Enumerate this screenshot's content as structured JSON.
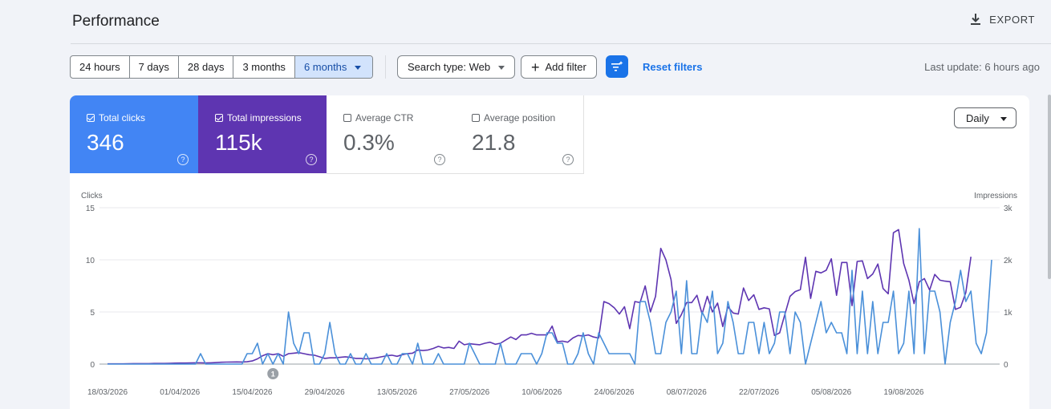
{
  "header": {
    "title": "Performance",
    "export_label": "EXPORT"
  },
  "toolbar": {
    "ranges": [
      {
        "label": "24 hours",
        "selected": false
      },
      {
        "label": "7 days",
        "selected": false
      },
      {
        "label": "28 days",
        "selected": false
      },
      {
        "label": "3 months",
        "selected": false
      },
      {
        "label": "6 months",
        "selected": true
      }
    ],
    "search_type": "Search type: Web",
    "add_filter": "Add filter",
    "reset_filters": "Reset filters",
    "last_update": "Last update: 6 hours ago"
  },
  "metrics": [
    {
      "label": "Total clicks",
      "value": "346",
      "checked": true,
      "color": "#4285f4"
    },
    {
      "label": "Total impressions",
      "value": "115k",
      "checked": true,
      "color": "#5e35b1"
    },
    {
      "label": "Average CTR",
      "value": "0.3%",
      "checked": false
    },
    {
      "label": "Average position",
      "value": "21.8",
      "checked": false
    }
  ],
  "granularity": "Daily",
  "annotation": "1",
  "chart_data": {
    "type": "line",
    "ylabel_left": "Clicks",
    "ylabel_right": "Impressions",
    "y_left_ticks": [
      "0",
      "5",
      "10",
      "15"
    ],
    "y_right_ticks": [
      "0",
      "1k",
      "2k",
      "3k"
    ],
    "ylim_left": [
      0,
      15
    ],
    "ylim_right": [
      0,
      3000
    ],
    "x_ticks": [
      "18/03/2026",
      "01/04/2026",
      "15/04/2026",
      "29/04/2026",
      "13/05/2026",
      "27/05/2026",
      "10/06/2026",
      "24/06/2026",
      "08/07/2026",
      "22/07/2026",
      "05/08/2026",
      "19/08/2026"
    ],
    "x_start": "2026-03-18",
    "series": [
      {
        "name": "Clicks",
        "axis": "left",
        "color": "#4a90d9",
        "values": [
          0,
          0,
          0,
          0,
          0,
          0,
          0,
          0,
          0,
          0,
          0,
          0,
          0,
          0,
          0,
          0,
          0,
          0,
          1,
          0,
          0,
          0,
          0,
          0,
          0,
          0,
          0,
          1,
          1,
          2,
          0,
          1,
          0,
          1,
          0,
          5,
          2,
          1,
          3,
          3,
          0,
          0,
          1,
          4,
          1,
          0,
          0,
          1,
          0,
          0,
          1,
          0,
          0,
          0,
          1,
          0,
          0,
          1,
          1,
          0,
          2,
          0,
          0,
          0,
          1,
          0,
          0,
          0,
          0,
          0,
          2,
          1,
          0,
          0,
          0,
          0,
          2,
          0,
          0,
          0,
          1,
          1,
          1,
          0,
          1,
          3,
          3,
          2,
          2,
          0,
          0,
          1,
          3,
          1,
          0,
          3,
          2,
          1,
          1,
          1,
          1,
          1,
          0,
          6,
          6,
          4,
          1,
          1,
          4,
          5,
          7,
          1,
          8,
          1,
          1,
          5,
          4,
          7,
          1,
          2,
          6,
          4,
          1,
          1,
          4,
          4,
          1,
          4,
          1,
          2,
          5,
          5,
          1,
          5,
          4,
          0,
          2,
          4,
          6,
          3,
          4,
          3,
          3,
          1,
          9,
          1,
          7,
          1,
          6,
          1,
          4,
          4,
          7,
          1,
          2,
          7,
          1,
          13,
          1,
          7,
          7,
          5,
          0,
          4,
          6,
          9,
          6,
          7,
          2,
          1,
          3,
          10
        ]
      },
      {
        "name": "Impressions",
        "axis": "right",
        "color": "#5e35b1",
        "values": [
          5,
          5,
          5,
          5,
          8,
          10,
          10,
          10,
          10,
          12,
          12,
          12,
          15,
          18,
          20,
          20,
          22,
          25,
          25,
          22,
          25,
          30,
          35,
          38,
          40,
          42,
          40,
          45,
          60,
          100,
          160,
          200,
          180,
          200,
          150,
          200,
          210,
          220,
          200,
          180,
          170,
          140,
          110,
          120,
          120,
          130,
          140,
          130,
          110,
          110,
          100,
          110,
          120,
          140,
          160,
          170,
          150,
          180,
          200,
          210,
          270,
          260,
          270,
          300,
          340,
          310,
          320,
          300,
          440,
          370,
          390,
          380,
          370,
          400,
          420,
          380,
          400,
          460,
          520,
          470,
          560,
          560,
          590,
          560,
          560,
          560,
          730,
          430,
          440,
          420,
          500,
          550,
          540,
          560,
          520,
          500,
          1200,
          1160,
          1080,
          960,
          1100,
          680,
          1200,
          1180,
          1500,
          1000,
          1300,
          2220,
          2000,
          1620,
          780,
          950,
          1180,
          1180,
          1320,
          960,
          1300,
          1000,
          1170,
          720,
          1100,
          980,
          960,
          1460,
          1220,
          1330,
          1050,
          1080,
          1060,
          550,
          600,
          950,
          1300,
          1390,
          1430,
          2050,
          1260,
          1780,
          1750,
          1800,
          2020,
          1320,
          1950,
          1950,
          1120,
          1970,
          1980,
          1640,
          1730,
          1920,
          1450,
          1350,
          2520,
          2580,
          1930,
          1610,
          1160,
          1580,
          1640,
          1420,
          1720,
          1610,
          1590,
          1580,
          1050,
          1090,
          1370,
          2060
        ]
      }
    ],
    "grid": true,
    "legend": "none"
  }
}
